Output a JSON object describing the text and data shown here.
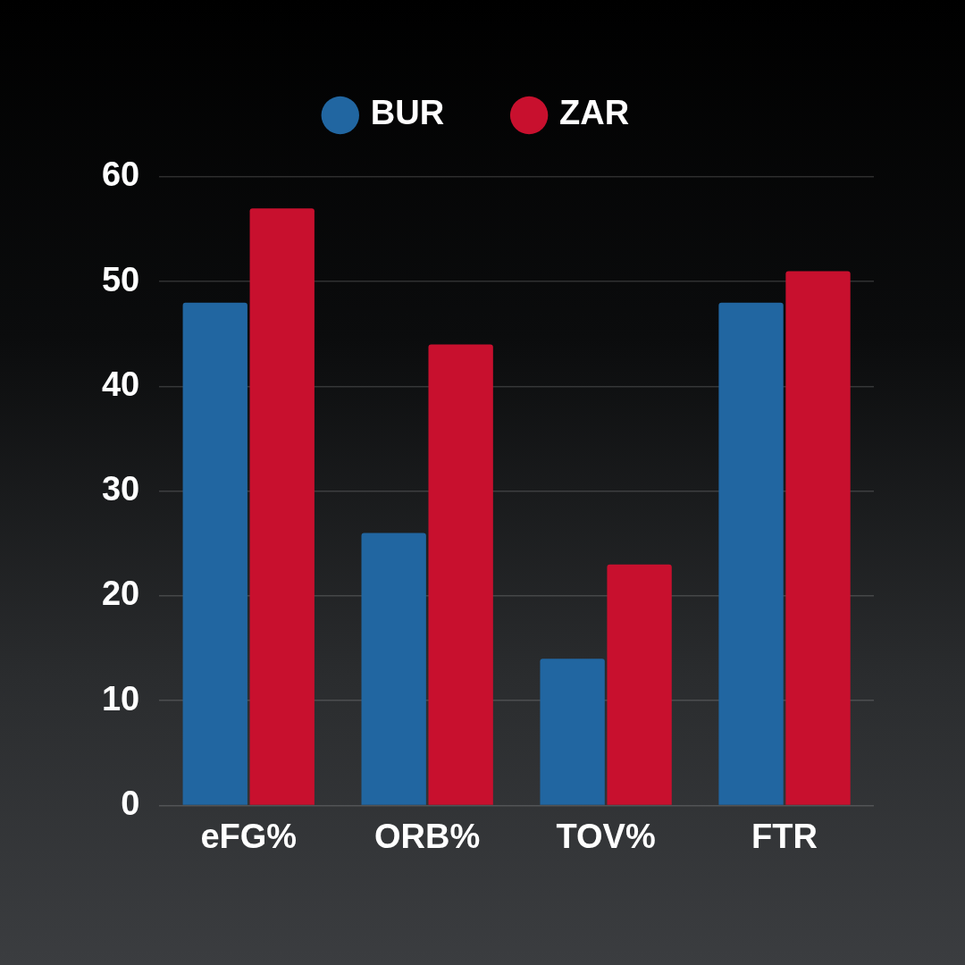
{
  "chart_data": {
    "type": "bar",
    "categories": [
      "eFG%",
      "ORB%",
      "TOV%",
      "FTR"
    ],
    "series": [
      {
        "name": "BUR",
        "color": "#2166a1",
        "values": [
          48,
          26,
          14,
          48
        ]
      },
      {
        "name": "ZAR",
        "color": "#c8102e",
        "values": [
          57,
          44,
          23,
          51
        ]
      }
    ],
    "ylim": [
      0,
      60
    ],
    "yticks": [
      0,
      10,
      20,
      30,
      40,
      50,
      60
    ],
    "grid": "y",
    "legend": "top"
  }
}
